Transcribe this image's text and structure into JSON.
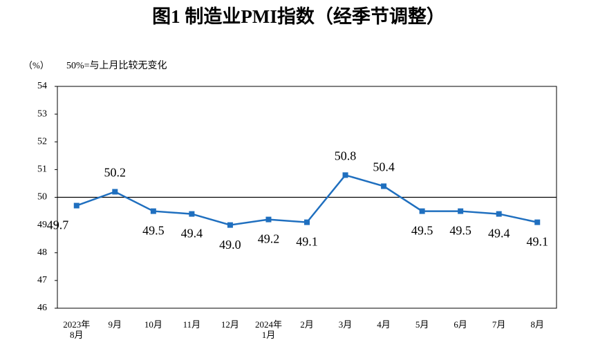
{
  "chart_data": {
    "type": "line",
    "title": "图1  制造业PMI指数（经季节调整）",
    "unit_label": "（%）",
    "annotation": "50%=与上月比较无变化",
    "categories": [
      "2023年\n8月",
      "9月",
      "10月",
      "11月",
      "12月",
      "2024年\n1月",
      "2月",
      "3月",
      "4月",
      "5月",
      "6月",
      "7月",
      "8月"
    ],
    "series": [
      {
        "name": "制造业PMI",
        "color": "#1f6fbf",
        "values": [
          49.7,
          50.2,
          49.5,
          49.4,
          49.0,
          49.2,
          49.1,
          50.8,
          50.4,
          49.5,
          49.5,
          49.4,
          49.1
        ],
        "value_labels": [
          "49.7",
          "50.2",
          "49.5",
          "49.4",
          "49.0",
          "49.2",
          "49.1",
          "50.8",
          "50.4",
          "49.5",
          "49.5",
          "49.4",
          "49.1"
        ]
      }
    ],
    "ylim": [
      46,
      54
    ],
    "yticks": [
      46,
      47,
      48,
      49,
      50,
      51,
      52,
      53,
      54
    ],
    "reference_line": 50,
    "grid": false
  }
}
